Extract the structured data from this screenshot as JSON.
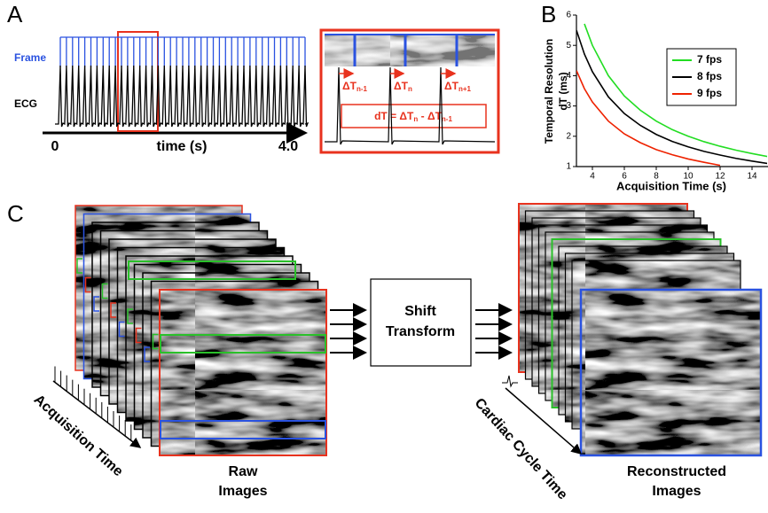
{
  "panel_a": {
    "label": "A",
    "frame_label": "Frame",
    "ecg_label": "ECG",
    "axis_start": "0",
    "axis_label": "time (s)",
    "axis_end": "4.0",
    "deltas": [
      {
        "base": "ΔT",
        "sub": "n-1"
      },
      {
        "base": "ΔT",
        "sub": "n"
      },
      {
        "base": "ΔT",
        "sub": "n+1"
      }
    ],
    "formula": {
      "lhs": "dT = ΔT",
      "sub1": "n",
      "mid": " - ΔT",
      "sub2": "n-1"
    }
  },
  "chart_data": {
    "type": "line",
    "panel_label": "B",
    "ylabel": [
      "Temporal Resolution",
      "dT (ms)"
    ],
    "xlabel": "Acquisition Time (s)",
    "x": [
      3,
      3.5,
      4,
      5,
      6,
      7,
      8,
      9,
      10,
      11,
      12,
      13,
      14,
      15
    ],
    "series": [
      {
        "name": "7 fps",
        "color": "#22dd22",
        "values": [
          null,
          5.71,
          5.0,
          4.0,
          3.33,
          2.86,
          2.5,
          2.22,
          2.0,
          1.82,
          1.67,
          1.54,
          1.43,
          1.33
        ]
      },
      {
        "name": "8 fps",
        "color": "#000000",
        "values": [
          5.5,
          4.71,
          4.13,
          3.3,
          2.75,
          2.36,
          2.06,
          1.83,
          1.65,
          1.5,
          1.38,
          1.27,
          1.18,
          1.1
        ]
      },
      {
        "name": "9 fps",
        "color": "#ee2200",
        "values": [
          4.17,
          3.57,
          3.13,
          2.5,
          2.08,
          1.79,
          1.56,
          1.39,
          1.25,
          1.14,
          1.04,
          null,
          null,
          null
        ]
      }
    ],
    "xlim": [
      3,
      15
    ],
    "xticks": [
      4,
      6,
      8,
      10,
      12,
      14
    ],
    "ylim": [
      1,
      6
    ],
    "yticks": [
      1,
      2,
      3,
      4,
      5,
      6
    ],
    "legend": "upper right"
  },
  "panel_c": {
    "label": "C",
    "acquisition_label": "Acquisition Time",
    "raw_label": [
      "Raw",
      "Images"
    ],
    "transform_label": [
      "Shift",
      "Transform"
    ],
    "cardiac_label": "Cardiac Cycle Time",
    "reconstructed_label": [
      "Reconstructed",
      "Images"
    ]
  }
}
